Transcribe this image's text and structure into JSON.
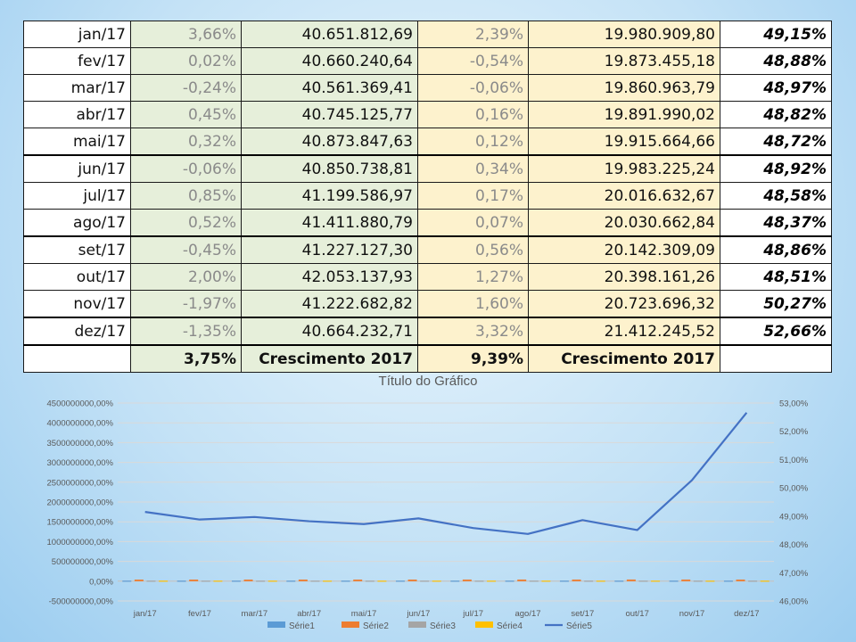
{
  "table": {
    "rows": [
      {
        "month": "jan/17",
        "pct1": "3,66%",
        "val1": "40.651.812,69",
        "pct2": "2,39%",
        "val2": "19.980.909,80",
        "ratio": "49,15%"
      },
      {
        "month": "fev/17",
        "pct1": "0,02%",
        "val1": "40.660.240,64",
        "pct2": "-0,54%",
        "val2": "19.873.455,18",
        "ratio": "48,88%"
      },
      {
        "month": "mar/17",
        "pct1": "-0,24%",
        "val1": "40.561.369,41",
        "pct2": "-0,06%",
        "val2": "19.860.963,79",
        "ratio": "48,97%"
      },
      {
        "month": "abr/17",
        "pct1": "0,45%",
        "val1": "40.745.125,77",
        "pct2": "0,16%",
        "val2": "19.891.990,02",
        "ratio": "48,82%"
      },
      {
        "month": "mai/17",
        "pct1": "0,32%",
        "val1": "40.873.847,63",
        "pct2": "0,12%",
        "val2": "19.915.664,66",
        "ratio": "48,72%"
      },
      {
        "month": "jun/17",
        "pct1": "-0,06%",
        "val1": "40.850.738,81",
        "pct2": "0,34%",
        "val2": "19.983.225,24",
        "ratio": "48,92%"
      },
      {
        "month": "jul/17",
        "pct1": "0,85%",
        "val1": "41.199.586,97",
        "pct2": "0,17%",
        "val2": "20.016.632,67",
        "ratio": "48,58%"
      },
      {
        "month": "ago/17",
        "pct1": "0,52%",
        "val1": "41.411.880,79",
        "pct2": "0,07%",
        "val2": "20.030.662,84",
        "ratio": "48,37%"
      },
      {
        "month": "set/17",
        "pct1": "-0,45%",
        "val1": "41.227.127,30",
        "pct2": "0,56%",
        "val2": "20.142.309,09",
        "ratio": "48,86%"
      },
      {
        "month": "out/17",
        "pct1": "2,00%",
        "val1": "42.053.137,93",
        "pct2": "1,27%",
        "val2": "20.398.161,26",
        "ratio": "48,51%"
      },
      {
        "month": "nov/17",
        "pct1": "-1,97%",
        "val1": "41.222.682,82",
        "pct2": "1,60%",
        "val2": "20.723.696,32",
        "ratio": "50,27%"
      },
      {
        "month": "dez/17",
        "pct1": "-1,35%",
        "val1": "40.664.232,71",
        "pct2": "3,32%",
        "val2": "21.412.245,52",
        "ratio": "52,66%"
      }
    ],
    "total": {
      "month": "",
      "pct1": "3,75%",
      "val1": "Crescimento 2017",
      "pct2": "9,39%",
      "val2": "Crescimento 2017",
      "ratio": ""
    }
  },
  "chart_data": {
    "type": "bar",
    "title": "Título do Gráfico",
    "categories": [
      "jan/17",
      "fev/17",
      "mar/17",
      "abr/17",
      "mai/17",
      "jun/17",
      "jul/17",
      "ago/17",
      "set/17",
      "out/17",
      "nov/17",
      "dez/17"
    ],
    "series": [
      {
        "name": "Série1",
        "type": "bar",
        "axis": "left",
        "color": "#5b9bd5",
        "values": [
          0.0366,
          0.0002,
          -0.0024,
          0.0045,
          0.0032,
          -0.0006,
          0.0085,
          0.0052,
          -0.0045,
          0.02,
          -0.0197,
          -0.0135
        ]
      },
      {
        "name": "Série2",
        "type": "bar",
        "axis": "left",
        "color": "#ed7d31",
        "values": [
          40651812.69,
          40660240.64,
          40561369.41,
          40745125.77,
          40873847.63,
          40850738.81,
          41199586.97,
          41411880.79,
          41227127.3,
          42053137.93,
          41222682.82,
          40664232.71
        ]
      },
      {
        "name": "Série3",
        "type": "bar",
        "axis": "left",
        "color": "#a5a5a5",
        "values": [
          0.0239,
          -0.0054,
          -0.0006,
          0.0016,
          0.0012,
          0.0034,
          0.0017,
          0.0007,
          0.0056,
          0.0127,
          0.016,
          0.0332
        ]
      },
      {
        "name": "Série4",
        "type": "bar",
        "axis": "left",
        "color": "#ffc000",
        "values": [
          19980909.8,
          19873455.18,
          19860963.79,
          19891990.02,
          19915664.66,
          19983225.24,
          20016632.67,
          20030662.84,
          20142309.09,
          20398161.26,
          20723696.32,
          21412245.52
        ]
      },
      {
        "name": "Série5",
        "type": "line",
        "axis": "right",
        "color": "#4472c4",
        "values": [
          0.4915,
          0.4888,
          0.4897,
          0.4882,
          0.4872,
          0.4892,
          0.4858,
          0.4837,
          0.4886,
          0.4851,
          0.5027,
          0.5266
        ]
      }
    ],
    "y_left": {
      "range": [
        -500000000,
        4500000000
      ],
      "ticks": [
        4500000000,
        4000000000,
        3500000000,
        3000000000,
        2500000000,
        2000000000,
        1500000000,
        1000000000,
        500000000,
        0,
        -500000000
      ],
      "tick_labels": [
        "4500000000,00%",
        "4000000000,00%",
        "3500000000,00%",
        "3000000000,00%",
        "2500000000,00%",
        "2000000000,00%",
        "1500000000,00%",
        "1000000000,00%",
        "500000000,00%",
        "0,00%",
        "-500000000,00%"
      ]
    },
    "y_right": {
      "range": [
        0.46,
        0.53
      ],
      "ticks": [
        0.53,
        0.52,
        0.51,
        0.5,
        0.49,
        0.48,
        0.47,
        0.46
      ],
      "tick_labels": [
        "53,00%",
        "52,00%",
        "51,00%",
        "50,00%",
        "49,00%",
        "48,00%",
        "47,00%",
        "46,00%"
      ]
    },
    "grid": true,
    "legend": "bottom",
    "colors": {
      "grid": "#d9d9d9",
      "tick_text": "#595959",
      "title": "#595959"
    }
  }
}
